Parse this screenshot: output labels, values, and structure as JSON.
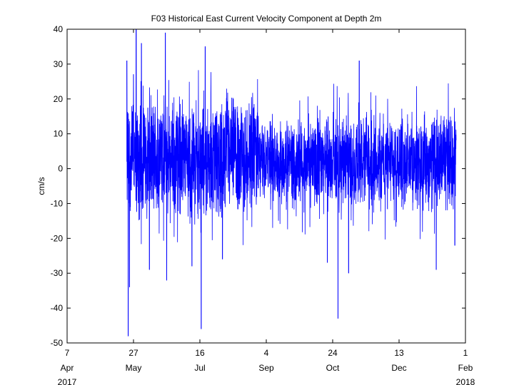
{
  "chart_data": {
    "type": "line",
    "title": "F03 Historical East Current Velocity Component at Depth 2m",
    "xlabel": "",
    "ylabel": "cm/s",
    "ylim": [
      -50,
      40
    ],
    "yticks": [
      -50,
      -40,
      -30,
      -20,
      -10,
      0,
      10,
      20,
      30,
      40
    ],
    "xlim": [
      "2017-04-07",
      "2018-02-01"
    ],
    "xticks": [
      {
        "date": "2017-04-07",
        "day": "7",
        "month": "Apr",
        "year": "2017"
      },
      {
        "date": "2017-05-27",
        "day": "27",
        "month": "May",
        "year": ""
      },
      {
        "date": "2017-07-16",
        "day": "16",
        "month": "Jul",
        "year": ""
      },
      {
        "date": "2017-09-04",
        "day": "4",
        "month": "Sep",
        "year": ""
      },
      {
        "date": "2017-10-24",
        "day": "24",
        "month": "Oct",
        "year": ""
      },
      {
        "date": "2017-12-13",
        "day": "13",
        "month": "Dec",
        "year": ""
      },
      {
        "date": "2018-02-01",
        "day": "1",
        "month": "Feb",
        "year": "2018"
      }
    ],
    "grid": false,
    "series": [
      {
        "color": "#0000ff",
        "points": [
          {
            "date": "2017-05-22",
            "y": 31
          },
          {
            "date": "2017-05-23",
            "y": -48
          },
          {
            "date": "2017-05-24",
            "y": -34
          },
          {
            "date": "2017-05-27",
            "y": 27
          },
          {
            "date": "2017-05-29",
            "y": 40
          },
          {
            "date": "2017-06-02",
            "y": 36
          },
          {
            "date": "2017-06-08",
            "y": -29
          },
          {
            "date": "2017-06-20",
            "y": 39
          },
          {
            "date": "2017-06-21",
            "y": -32
          },
          {
            "date": "2017-07-10",
            "y": -28
          },
          {
            "date": "2017-07-17",
            "y": -46
          },
          {
            "date": "2017-07-20",
            "y": 35
          },
          {
            "date": "2017-08-02",
            "y": -26
          },
          {
            "date": "2017-10-28",
            "y": -43
          },
          {
            "date": "2017-10-20",
            "y": -27
          },
          {
            "date": "2017-11-05",
            "y": -30
          },
          {
            "date": "2017-11-13",
            "y": 31
          },
          {
            "date": "2018-01-10",
            "y": -29
          },
          {
            "date": "2018-01-24",
            "y": -22
          }
        ]
      }
    ]
  }
}
